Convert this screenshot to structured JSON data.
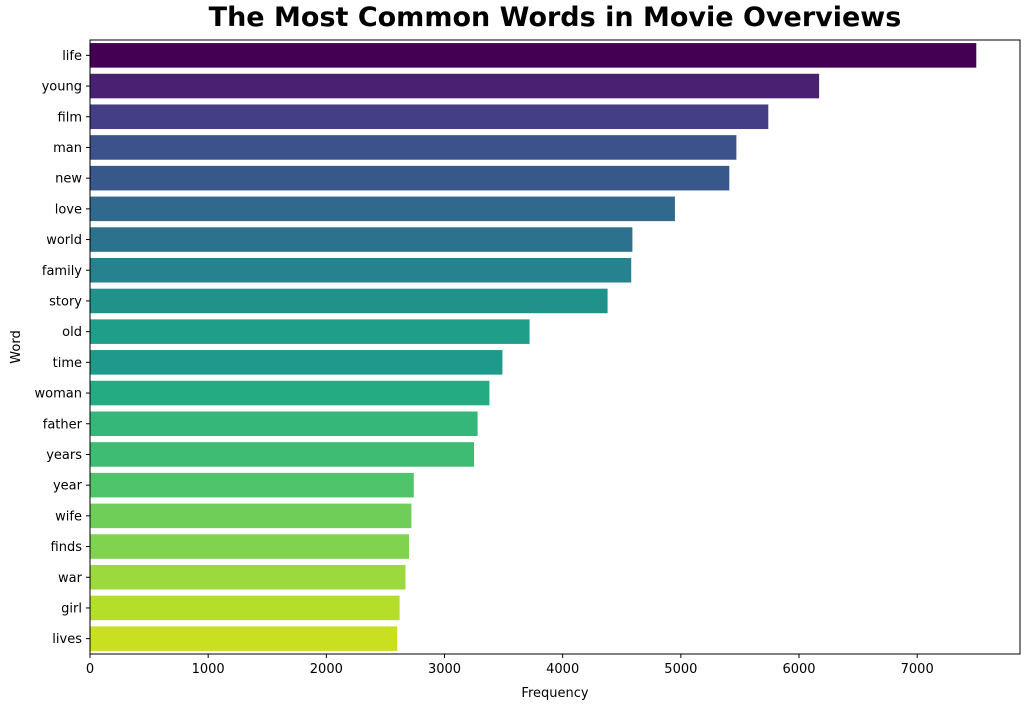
{
  "chart_data": {
    "type": "bar",
    "orientation": "horizontal",
    "title": "The Most Common Words in Movie Overviews",
    "xlabel": "Frequency",
    "ylabel": "Word",
    "xlim": [
      0,
      7870
    ],
    "xticks": [
      "0",
      "1000",
      "2000",
      "3000",
      "4000",
      "5000",
      "6000",
      "7000"
    ],
    "categories": [
      "life",
      "young",
      "film",
      "man",
      "new",
      "love",
      "world",
      "family",
      "story",
      "old",
      "time",
      "woman",
      "father",
      "years",
      "year",
      "wife",
      "finds",
      "war",
      "girl",
      "lives"
    ],
    "values": [
      7500,
      6170,
      5740,
      5470,
      5410,
      4950,
      4590,
      4580,
      4380,
      3720,
      3490,
      3380,
      3280,
      3250,
      2740,
      2720,
      2700,
      2670,
      2620,
      2600
    ],
    "colors": [
      "#440154",
      "#482173",
      "#433e85",
      "#3b528b",
      "#38588c",
      "#31688e",
      "#2c728e",
      "#26828e",
      "#21918c",
      "#1f9e89",
      "#1f9a8a",
      "#25ab82",
      "#35b779",
      "#3fbc73",
      "#50c46a",
      "#6ece58",
      "#7fd34e",
      "#9bd93c",
      "#b5de2b",
      "#c8e020"
    ],
    "grid": false,
    "legend": "none"
  }
}
